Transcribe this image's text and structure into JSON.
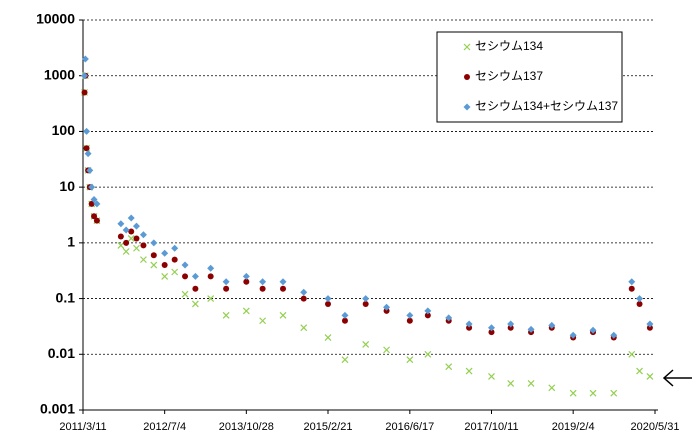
{
  "chart_data": {
    "type": "scatter",
    "log_y": true,
    "grid": true,
    "legend": "upper right",
    "ylim": [
      0.001,
      10000
    ],
    "yticks": [
      0.001,
      0.01,
      0.1,
      1,
      10,
      100,
      1000,
      10000
    ],
    "xlim": [
      "2011/3/11",
      "2020/5/31"
    ],
    "xticks": [
      "2011/3/11",
      "2012/7/4",
      "2013/10/28",
      "2015/2/21",
      "2016/6/17",
      "2017/10/11",
      "2019/2/4",
      "2020/5/31"
    ],
    "x": [
      "2011/3/20",
      "2011/3/25",
      "2011/4/1",
      "2011/4/10",
      "2011/4/20",
      "2011/5/1",
      "2011/5/15",
      "2011/6/1",
      "2011/10/20",
      "2011/11/20",
      "2011/12/20",
      "2012/1/20",
      "2012/3/1",
      "2012/5/1",
      "2012/7/4",
      "2012/9/1",
      "2012/11/1",
      "2013/1/1",
      "2013/4/1",
      "2013/7/1",
      "2013/10/28",
      "2014/2/1",
      "2014/6/1",
      "2014/10/1",
      "2015/2/21",
      "2015/6/1",
      "2015/10/1",
      "2016/2/1",
      "2016/6/17",
      "2016/10/1",
      "2017/2/1",
      "2017/6/1",
      "2017/10/11",
      "2018/2/1",
      "2018/6/1",
      "2018/10/1",
      "2019/2/4",
      "2019/6/1",
      "2019/10/1",
      "2020/1/15",
      "2020/3/1",
      "2020/5/1"
    ],
    "series": [
      {
        "name": "セシウム134",
        "color": "#92d050",
        "marker": "x",
        "values": [
          500,
          1000,
          50,
          20,
          10,
          5,
          3,
          2.5,
          0.9,
          0.7,
          1.2,
          0.8,
          0.5,
          0.4,
          0.25,
          0.3,
          0.12,
          0.08,
          0.1,
          0.05,
          0.06,
          0.04,
          0.05,
          0.03,
          0.02,
          0.008,
          0.015,
          0.012,
          0.008,
          0.01,
          0.006,
          0.005,
          0.004,
          0.003,
          0.003,
          0.0025,
          0.002,
          0.002,
          0.002,
          0.01,
          0.005,
          0.004
        ]
      },
      {
        "name": "セシウム137",
        "color": "#8b0000",
        "marker": "circle",
        "values": [
          500,
          1000,
          50,
          20,
          10,
          5,
          3,
          2.5,
          1.3,
          1.0,
          1.6,
          1.2,
          0.9,
          0.6,
          0.4,
          0.5,
          0.25,
          0.15,
          0.25,
          0.15,
          0.2,
          0.15,
          0.15,
          0.1,
          0.08,
          0.04,
          0.08,
          0.06,
          0.04,
          0.05,
          0.04,
          0.03,
          0.025,
          0.03,
          0.025,
          0.03,
          0.02,
          0.025,
          0.02,
          0.15,
          0.08,
          0.03
        ]
      },
      {
        "name": "セシウム134+セシウム137",
        "color": "#5b9bd5",
        "marker": "diamond",
        "values": [
          1000,
          2000,
          100,
          40,
          20,
          10,
          6,
          5,
          2.2,
          1.7,
          2.8,
          2.0,
          1.4,
          1.0,
          0.65,
          0.8,
          0.4,
          0.25,
          0.35,
          0.2,
          0.25,
          0.2,
          0.2,
          0.13,
          0.1,
          0.05,
          0.1,
          0.07,
          0.05,
          0.06,
          0.045,
          0.035,
          0.03,
          0.035,
          0.028,
          0.033,
          0.022,
          0.027,
          0.022,
          0.2,
          0.1,
          0.035
        ]
      }
    ]
  }
}
